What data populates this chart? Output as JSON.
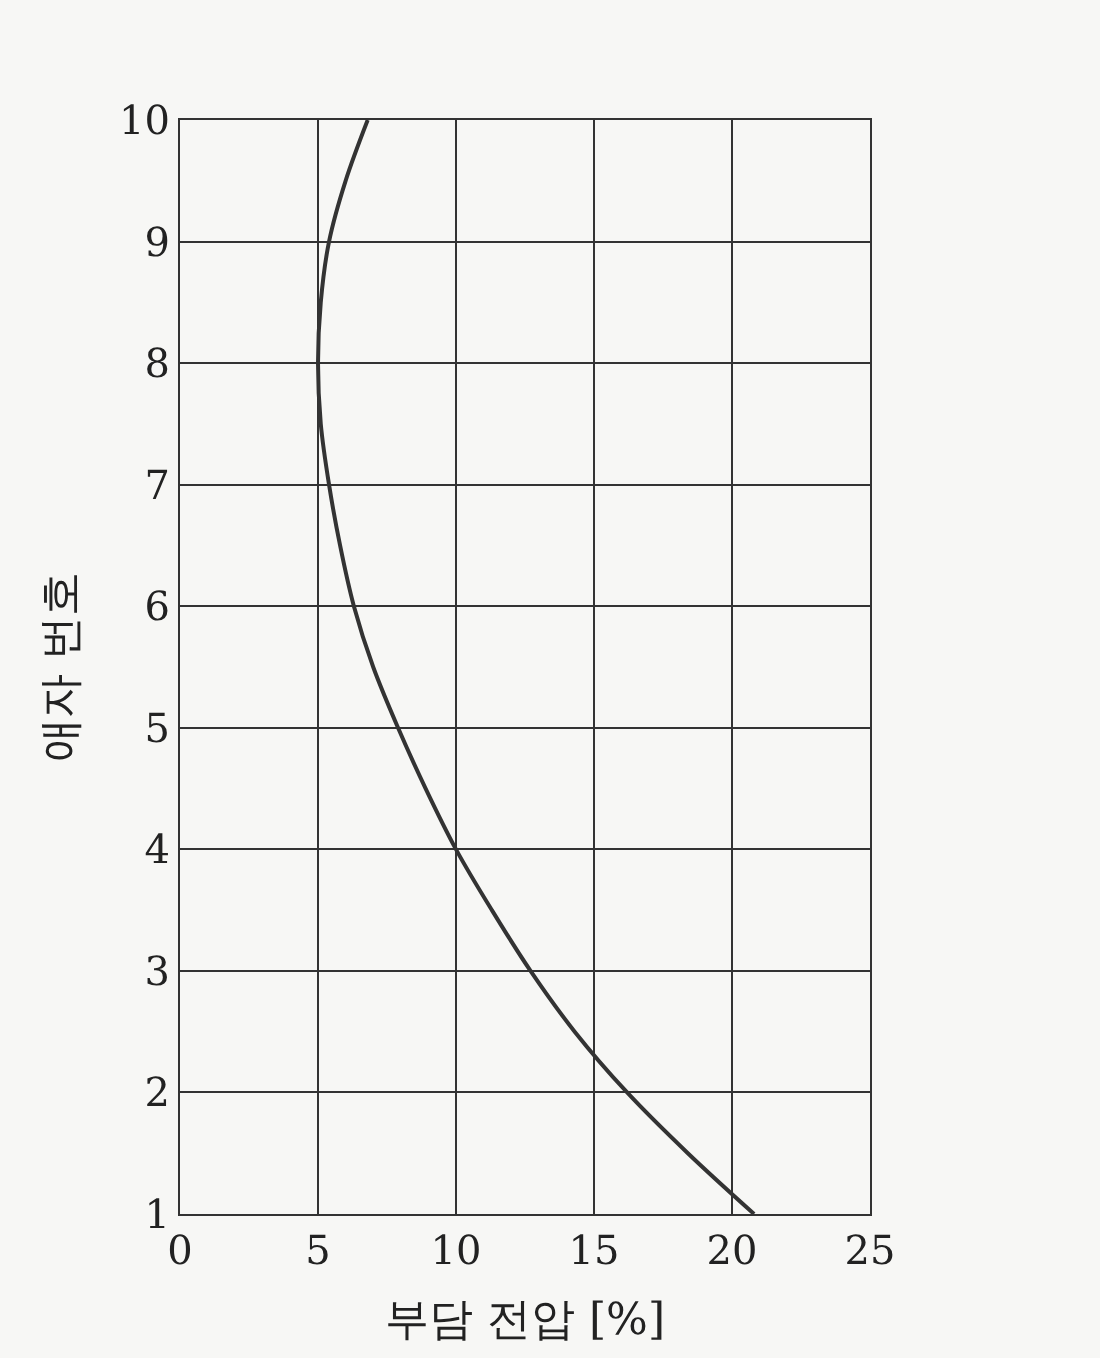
{
  "chart_data": {
    "type": "line",
    "xlabel": "부담 전압 [%]",
    "ylabel": "애자 번호",
    "xlim": [
      0,
      25
    ],
    "xticks": [
      0,
      5,
      10,
      15,
      20,
      25
    ],
    "ylim": [
      1,
      10
    ],
    "yticks": [
      1,
      2,
      3,
      4,
      5,
      6,
      7,
      8,
      9,
      10
    ],
    "grid": true,
    "marker": "none",
    "line_style": "solid",
    "series": [
      {
        "color": "#333333",
        "x": [
          20.8,
          18.4,
          16.2,
          14.3,
          12.7,
          11.3,
          10.0,
          8.9,
          7.9,
          7.0,
          6.3,
          5.8,
          5.4,
          5.1,
          5.0,
          5.1,
          5.4,
          6.0,
          6.8
        ],
        "values": [
          1,
          1.5,
          2,
          2.5,
          3,
          3.5,
          4,
          4.5,
          5,
          5.5,
          6,
          6.5,
          7,
          7.5,
          8,
          8.5,
          9,
          9.5,
          10
        ]
      }
    ]
  }
}
